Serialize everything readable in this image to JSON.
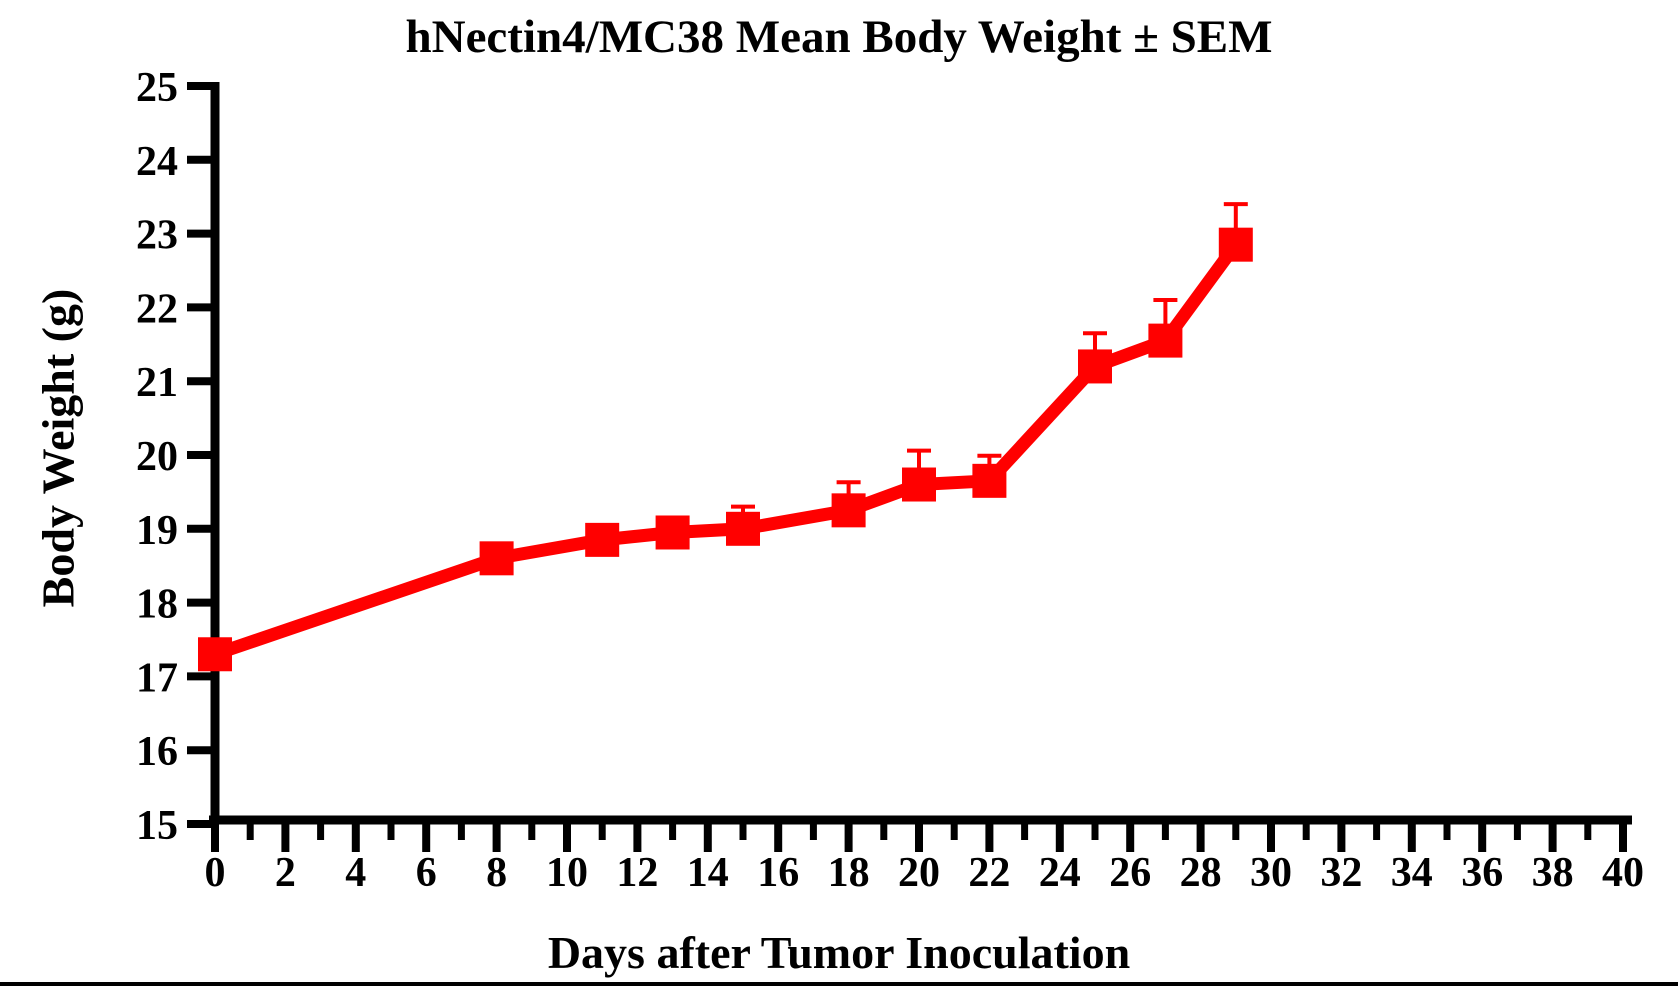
{
  "page": {
    "background_color": "#FFFFFF",
    "divider_color": "#000000"
  },
  "chart_data": {
    "type": "line",
    "title": "hNectin4/MC38 Mean Body Weight ± SEM",
    "xlabel": "Days after Tumor Inoculation",
    "ylabel": "Body Weight (g)",
    "xlim": [
      0,
      40
    ],
    "ylim": [
      15,
      25
    ],
    "grid": false,
    "legend": "none",
    "axis_color": "#000000",
    "x_major_ticks": [
      0,
      2,
      4,
      6,
      8,
      10,
      12,
      14,
      16,
      18,
      20,
      22,
      24,
      26,
      28,
      30,
      32,
      34,
      36,
      38,
      40
    ],
    "x_minor_step": 1,
    "y_ticks": [
      15,
      16,
      17,
      18,
      19,
      20,
      21,
      22,
      23,
      24,
      25
    ],
    "x": [
      0,
      8,
      11,
      13,
      15,
      18,
      20,
      22,
      25,
      27,
      29
    ],
    "series": [
      {
        "name": "hNectin4/MC38 mean body weight",
        "color": "#FF0000",
        "marker": "square",
        "error_bars": "SEM, upward only",
        "values": [
          17.3,
          18.6,
          18.85,
          18.95,
          19.0,
          19.25,
          19.6,
          19.65,
          21.2,
          21.55,
          22.85
        ],
        "sem_upper": [
          0,
          0,
          0,
          0,
          0.3,
          0.38,
          0.46,
          0.34,
          0.45,
          0.55,
          0.55
        ]
      }
    ]
  }
}
